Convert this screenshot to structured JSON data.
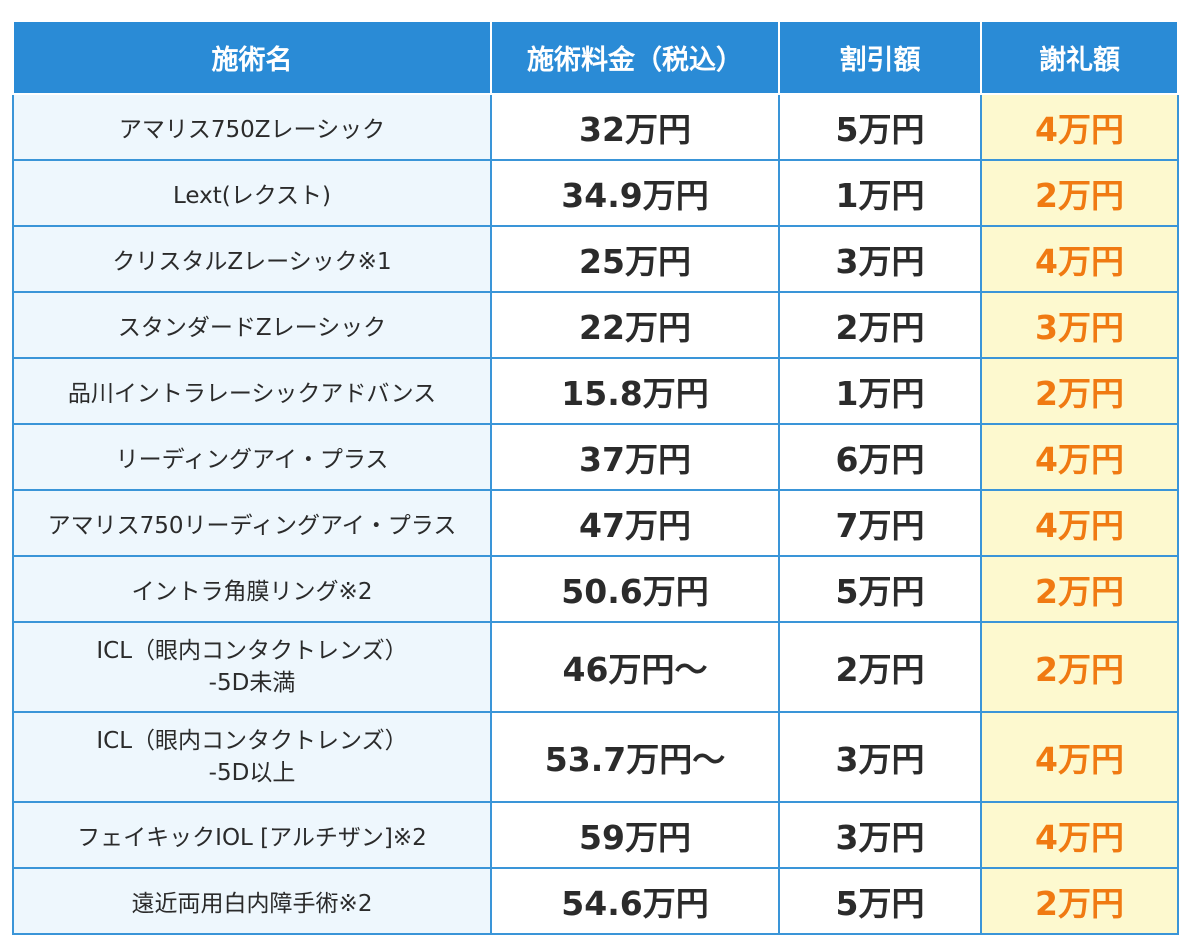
{
  "headers": {
    "name": "施術名",
    "price": "施術料金（税込）",
    "discount": "割引額",
    "reward": "謝礼額"
  },
  "rows": [
    {
      "name": "アマリス750Zレーシック",
      "price": "32万円",
      "discount": "5万円",
      "reward": "4万円"
    },
    {
      "name": "Lext(レクスト)",
      "price": "34.9万円",
      "discount": "1万円",
      "reward": "2万円"
    },
    {
      "name": "クリスタルZレーシック※1",
      "price": "25万円",
      "discount": "3万円",
      "reward": "4万円"
    },
    {
      "name": "スタンダードZレーシック",
      "price": "22万円",
      "discount": "2万円",
      "reward": "3万円"
    },
    {
      "name": "品川イントラレーシックアドバンス",
      "price": "15.8万円",
      "discount": "1万円",
      "reward": "2万円"
    },
    {
      "name": "リーディングアイ・プラス",
      "price": "37万円",
      "discount": "6万円",
      "reward": "4万円"
    },
    {
      "name": "アマリス750リーディングアイ・プラス",
      "price": "47万円",
      "discount": "7万円",
      "reward": "4万円"
    },
    {
      "name": "イントラ角膜リング※2",
      "price": "50.6万円",
      "discount": "5万円",
      "reward": "2万円"
    },
    {
      "name": "ICL（眼内コンタクトレンズ）",
      "name2": "-5D未満",
      "price": "46万円〜",
      "discount": "2万円",
      "reward": "2万円"
    },
    {
      "name": "ICL（眼内コンタクトレンズ）",
      "name2": "-5D以上",
      "price": "53.7万円〜",
      "discount": "3万円",
      "reward": "4万円"
    },
    {
      "name": "フェイキックIOL [アルチザン]※2",
      "price": "59万円",
      "discount": "3万円",
      "reward": "4万円"
    },
    {
      "name": "遠近両用白内障手術※2",
      "price": "54.6万円",
      "discount": "5万円",
      "reward": "2万円"
    }
  ]
}
